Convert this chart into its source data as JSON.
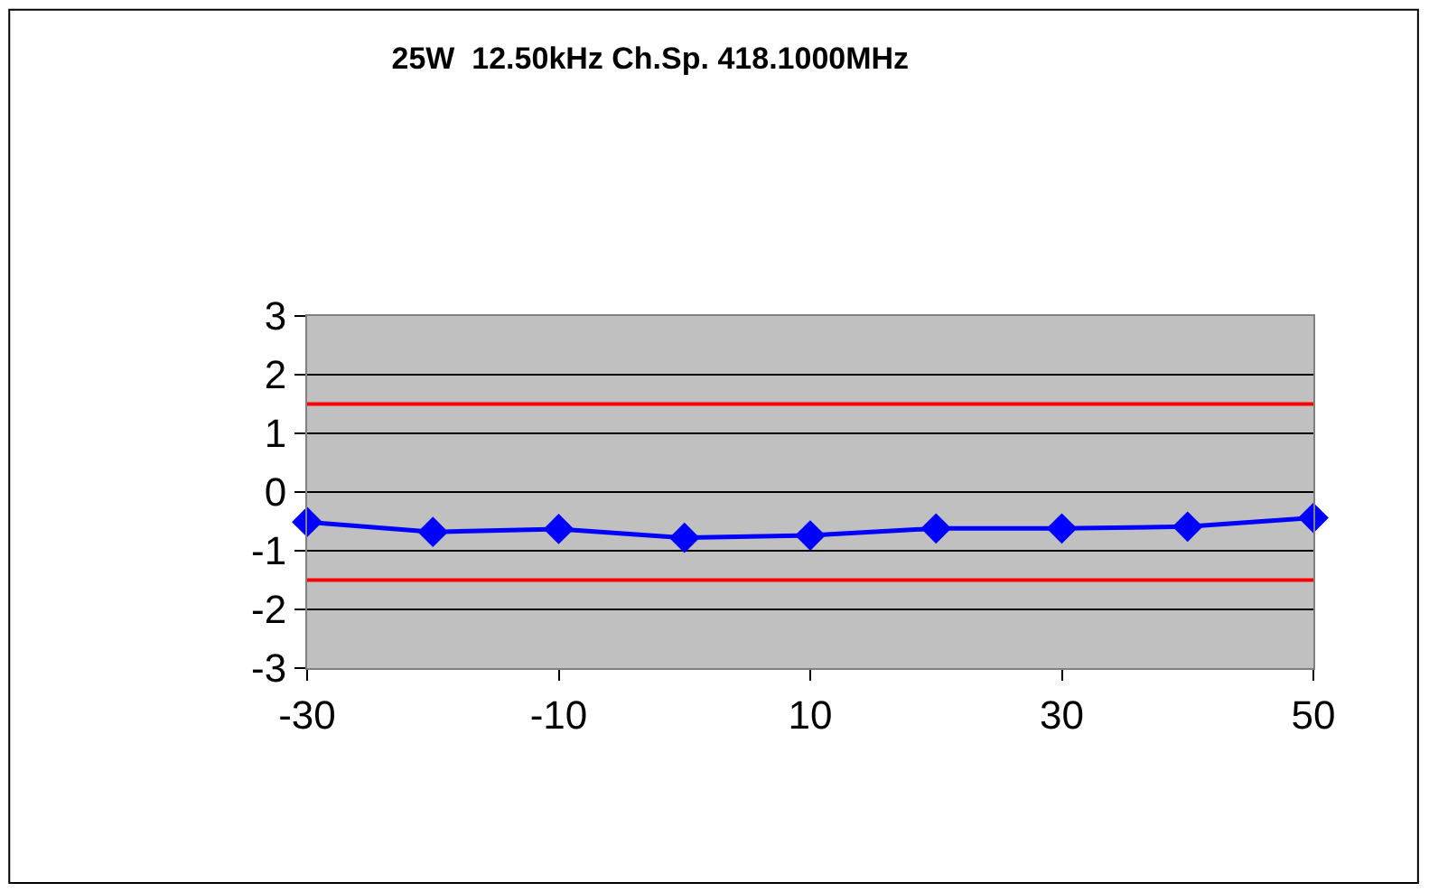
{
  "chart_data": {
    "type": "line",
    "title": "25W  12.50kHz Ch.Sp. 418.1000MHz",
    "x": [
      -30,
      -20,
      -10,
      0,
      10,
      20,
      30,
      40,
      50
    ],
    "series": [
      {
        "color": "#0000ff",
        "values": [
          -0.51,
          -0.68,
          -0.63,
          -0.78,
          -0.74,
          -0.62,
          -0.62,
          -0.59,
          -0.44
        ]
      }
    ],
    "xlim": [
      -30,
      50
    ],
    "xticks": [
      -30,
      -10,
      10,
      30,
      50
    ],
    "ylim": [
      -3,
      3
    ],
    "yticks": [
      -3,
      -2,
      -1,
      0,
      1,
      2,
      3
    ],
    "ref_lines": [
      {
        "axis": "y",
        "value": 1.5,
        "color": "#ff0000"
      },
      {
        "axis": "y",
        "value": -1.5,
        "color": "#ff0000"
      }
    ],
    "grid": "y",
    "marker": "diamond",
    "line_style": "solid"
  }
}
